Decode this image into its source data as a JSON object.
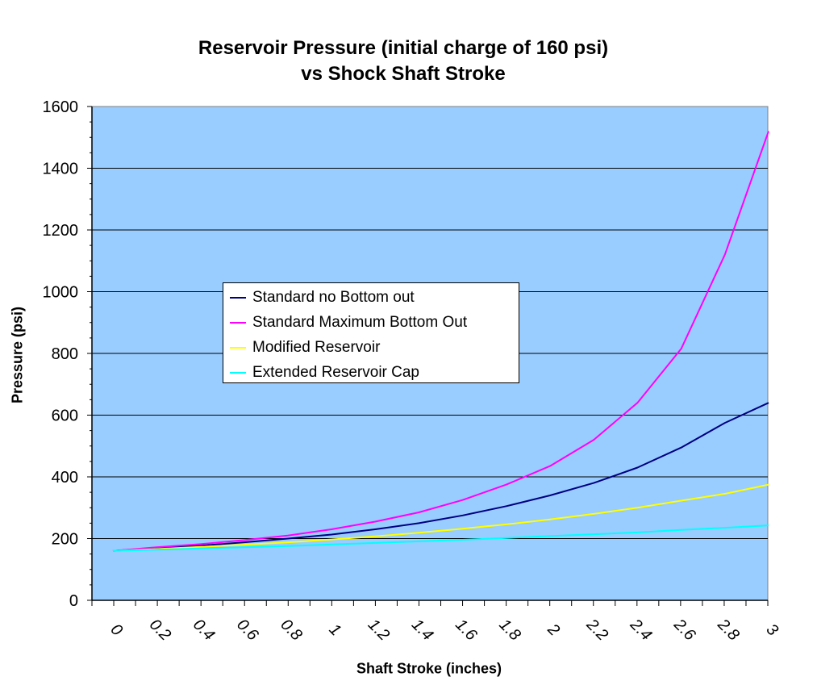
{
  "chart_data": {
    "type": "line",
    "title": "Reservoir Pressure (initial charge of 160 psi)",
    "subtitle": "vs Shock Shaft Stroke",
    "xlabel": "Shaft Stroke (inches)",
    "ylabel": "Pressure (psi)",
    "ylim": [
      0,
      1600
    ],
    "yticks": [
      "0",
      "200",
      "400",
      "600",
      "800",
      "1000",
      "1200",
      "1400",
      "1600"
    ],
    "xticks": [
      "0",
      "0.2",
      "0.4",
      "0.6",
      "0.8",
      "1",
      "1.2",
      "1.4",
      "1.6",
      "1.8",
      "2",
      "2.2",
      "2.4",
      "2.6",
      "2.8",
      "3"
    ],
    "grid": "horizontal",
    "legend_position": "center-left",
    "plot_background": "#99ccff",
    "x": [
      0,
      0.2,
      0.4,
      0.6,
      0.8,
      1.0,
      1.2,
      1.4,
      1.6,
      1.8,
      2.0,
      2.2,
      2.4,
      2.6,
      2.8,
      3.0
    ],
    "series": [
      {
        "name": "Standard no Bottom out",
        "color": "#000080",
        "values": [
          160,
          170,
          177,
          188,
          200,
          213,
          230,
          250,
          275,
          305,
          340,
          380,
          430,
          495,
          575,
          640
        ]
      },
      {
        "name": "Standard Maximum Bottom Out",
        "color": "#ff00ff",
        "values": [
          160,
          172,
          182,
          195,
          210,
          230,
          255,
          285,
          325,
          375,
          435,
          520,
          640,
          815,
          1120,
          1520
        ]
      },
      {
        "name": "Modified Reservoir",
        "color": "#ffff00",
        "values": [
          160,
          166,
          173,
          180,
          188,
          197,
          207,
          219,
          232,
          246,
          262,
          280,
          300,
          323,
          345,
          375
        ]
      },
      {
        "name": "Extended Reservoir Cap",
        "color": "#00ffff",
        "values": [
          160,
          164,
          168,
          172,
          176,
          181,
          186,
          191,
          196,
          202,
          208,
          214,
          220,
          228,
          235,
          243
        ]
      }
    ]
  }
}
